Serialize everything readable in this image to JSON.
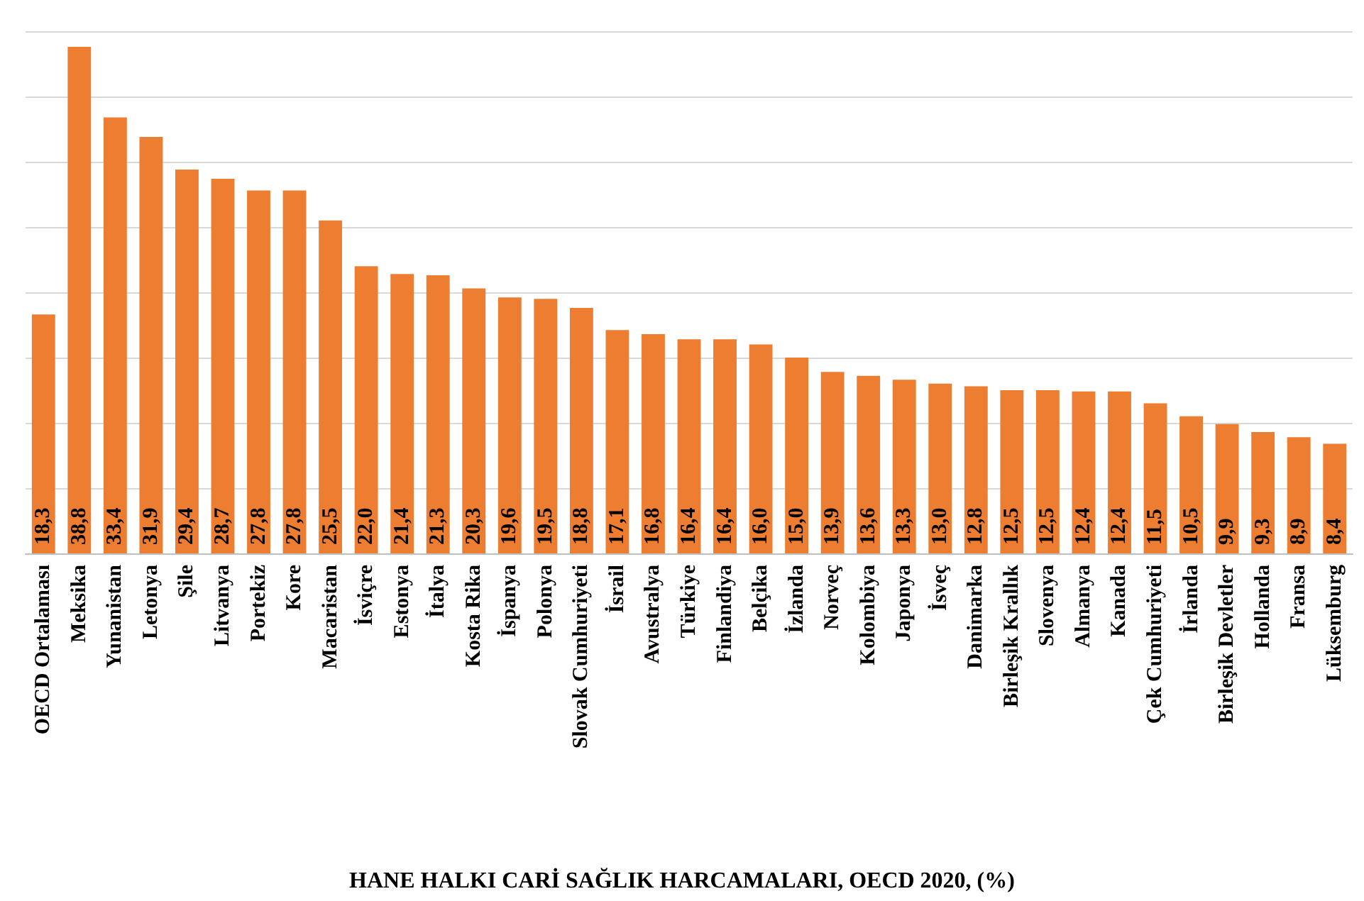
{
  "chart_data": {
    "type": "bar",
    "annotations": [
      "HANE HALKI CARİ SAĞLIK HARCAMALARI, OECD 2020, (%)"
    ],
    "categories": [
      "OECD Ortalaması",
      "Meksika",
      "Yunanistan",
      "Letonya",
      "Şile",
      "Litvanya",
      "Portekiz",
      "Kore",
      "Macaristan",
      "İsviçre",
      "Estonya",
      "İtalya",
      "Kosta Rika",
      "İspanya",
      "Polonya",
      "Slovak Cumhuriyeti",
      "İsrail",
      "Avustralya",
      "Türkiye",
      "Finlandiya",
      "Belçika",
      "İzlanda",
      "Norveç",
      "Kolombiya",
      "Japonya",
      "İsveç",
      "Danimarka",
      "Birleşik Krallık",
      "Slovenya",
      "Almanya",
      "Kanada",
      "Çek Cumhuriyeti",
      "İrlanda",
      "Birleşik Devletler",
      "Hollanda",
      "Fransa",
      "Lüksemburg"
    ],
    "values": [
      18.3,
      38.8,
      33.4,
      31.9,
      29.4,
      28.7,
      27.8,
      27.8,
      25.5,
      22.0,
      21.4,
      21.3,
      20.3,
      19.6,
      19.5,
      18.8,
      17.1,
      16.8,
      16.4,
      16.4,
      16.0,
      15.0,
      13.9,
      13.6,
      13.3,
      13.0,
      12.8,
      12.5,
      12.5,
      12.4,
      12.4,
      11.5,
      10.5,
      9.9,
      9.3,
      8.9,
      8.4
    ],
    "value_labels": [
      "18,3",
      "38,8",
      "33,4",
      "31,9",
      "29,4",
      "28,7",
      "27,8",
      "27,8",
      "25,5",
      "22,0",
      "21,4",
      "21,3",
      "20,3",
      "19,6",
      "19,5",
      "18,8",
      "17,1",
      "16,8",
      "16,4",
      "16,4",
      "16,0",
      "15,0",
      "13,9",
      "13,6",
      "13,3",
      "13,0",
      "12,8",
      "12,5",
      "12,5",
      "12,4",
      "12,4",
      "11,5",
      "10,5",
      "9,9",
      "9,3",
      "8,9",
      "8,4"
    ],
    "color": "#ed7d31",
    "tick_labels": "x",
    "grid": "y"
  }
}
